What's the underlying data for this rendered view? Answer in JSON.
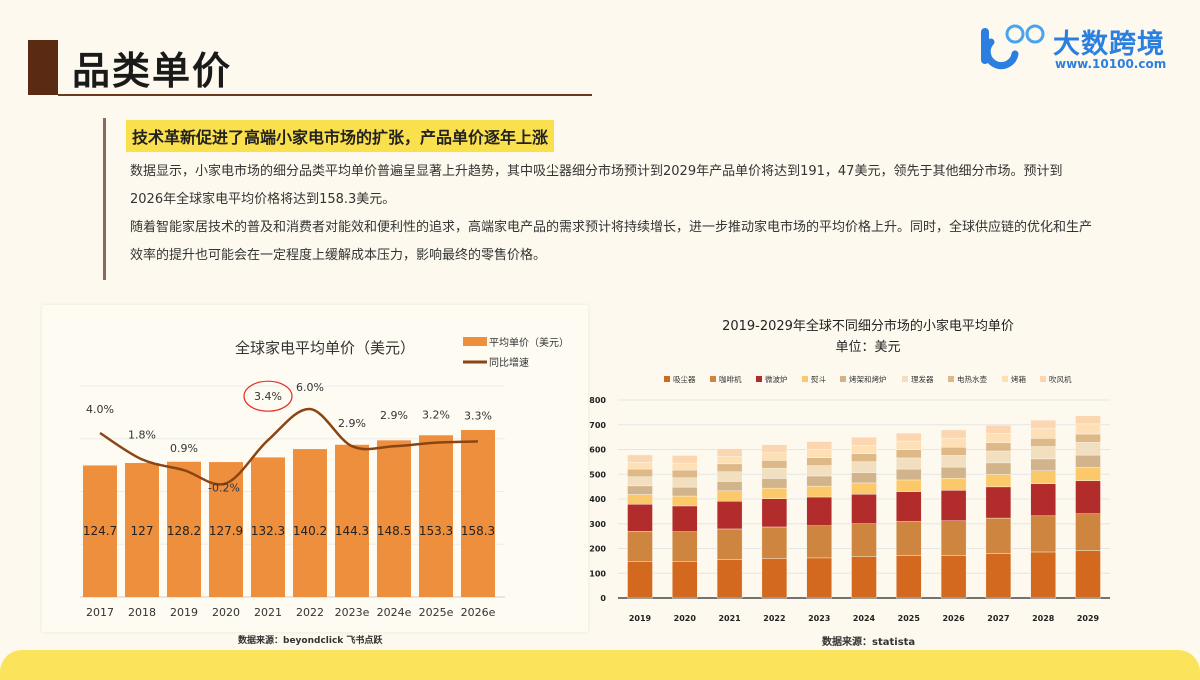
{
  "header": {
    "title": "品类单价"
  },
  "logo": {
    "name": "大数跨境",
    "url": "www.10100.com",
    "mark": "100",
    "brand_color": "#2a7fe0"
  },
  "content": {
    "highlight": "技术革新促进了高端小家电市场的扩张，产品单价逐年上涨",
    "paragraphs": [
      "数据显示，小家电市场的细分品类平均单价普遍呈显著上升趋势，其中吸尘器细分市场预计到2029年产品单价将达到191，47美元，领先于其他细分市场。预计到2026年全球家电平均价格将达到158.3美元。",
      "随着智能家居技术的普及和消费者对能效和便利性的追求，高端家电产品的需求预计将持续增长，进一步推动家电市场的平均价格上升。同时，全球供应链的优化和生产效率的提升也可能会在一定程度上缓解成本压力，影响最终的零售价格。"
    ]
  },
  "chart_data": [
    {
      "type": "bar",
      "title": "全球家电平均单价（美元）",
      "categories": [
        "2017",
        "2018",
        "2019",
        "2020",
        "2021",
        "2022",
        "2023e",
        "2024e",
        "2025e",
        "2026e"
      ],
      "series": [
        {
          "name": "平均单价（美元）",
          "type": "bar",
          "color": "#ee8f3e",
          "values": [
            124.7,
            127,
            128.2,
            127.9,
            132.3,
            140.2,
            144.3,
            148.5,
            153.3,
            158.3
          ],
          "labels": [
            "124.7",
            "127",
            "128.2",
            "127.9",
            "132.3",
            "140.2",
            "144.3",
            "148.5",
            "153.3",
            "158.3"
          ]
        },
        {
          "name": "同比增速",
          "type": "line",
          "color": "#8b4513",
          "values": [
            4.0,
            1.8,
            0.9,
            -0.2,
            3.4,
            6.0,
            2.9,
            2.9,
            3.2,
            3.3
          ],
          "labels": [
            "4.0%",
            "1.8%",
            "0.9%",
            "-0.2%",
            "3.4%",
            "6.0%",
            "2.9%",
            "2.9%",
            "3.2%",
            "3.3%"
          ]
        }
      ],
      "ylim": [
        0,
        200
      ],
      "grid": true,
      "legend": "top-right",
      "annotation": {
        "type": "circle",
        "target": "2021",
        "color": "#e0302a"
      },
      "source": "数据来源：beyondclick 飞书点跃"
    },
    {
      "type": "bar",
      "stacked": true,
      "title": "2019-2029年全球不同细分市场的小家电平均单价",
      "subtitle": "单位：美元",
      "categories": [
        "2019",
        "2020",
        "2021",
        "2022",
        "2023",
        "2024",
        "2025",
        "2026",
        "2027",
        "2028",
        "2029"
      ],
      "yticks": [
        "0",
        "100",
        "200",
        "300",
        "400",
        "500",
        "600",
        "700",
        "800"
      ],
      "ylim": [
        0,
        800
      ],
      "grid": true,
      "legend": "top",
      "series": [
        {
          "name": "吸尘器",
          "color": "#d2691e",
          "values": [
            148,
            148,
            155,
            160,
            162,
            167,
            172,
            172,
            180,
            186,
            191.47
          ]
        },
        {
          "name": "咖啡机",
          "color": "#cd853f",
          "values": [
            121,
            120,
            124,
            127,
            130,
            133,
            137,
            140,
            143,
            146,
            149
          ]
        },
        {
          "name": "微波炉",
          "color": "#b22c2c",
          "values": [
            110,
            104,
            112,
            114,
            116,
            119,
            121,
            123,
            126,
            130,
            133
          ]
        },
        {
          "name": "熨斗",
          "color": "#fcc96a",
          "values": [
            39,
            40,
            42,
            43,
            44,
            46,
            47,
            49,
            50,
            52,
            54
          ]
        },
        {
          "name": "烤架和烤炉",
          "color": "#d2b48c",
          "values": [
            35,
            36,
            38,
            39,
            41,
            42,
            44,
            45,
            47,
            48,
            50
          ]
        },
        {
          "name": "理发器",
          "color": "#f1dfc0",
          "values": [
            37,
            38,
            39,
            41,
            42,
            44,
            45,
            47,
            48,
            50,
            52
          ]
        },
        {
          "name": "电热水壶",
          "color": "#deb887",
          "values": [
            31,
            31,
            32,
            32,
            32,
            32,
            33,
            33,
            33,
            33,
            33
          ]
        },
        {
          "name": "烤箱",
          "color": "#fde0b5",
          "values": [
            27,
            28,
            30,
            31,
            33,
            34,
            35,
            37,
            38,
            40,
            41
          ]
        },
        {
          "name": "吹风机",
          "color": "#fcd6b0",
          "values": [
            30,
            31,
            31,
            32,
            32,
            32,
            32,
            33,
            33,
            33,
            33
          ]
        }
      ],
      "source": "数据来源：statista"
    }
  ]
}
